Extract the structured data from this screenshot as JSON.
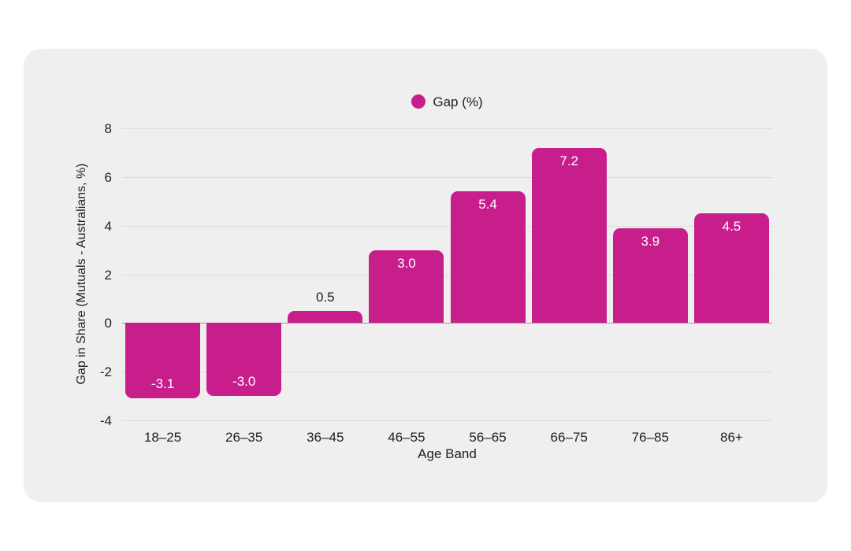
{
  "chart_data": {
    "type": "bar",
    "legend": {
      "label": "Gap (%)",
      "position": "top-center"
    },
    "categories": [
      "18–25",
      "26–35",
      "36–45",
      "46–55",
      "56–65",
      "66–75",
      "76–85",
      "86+"
    ],
    "series": [
      {
        "name": "Gap (%)",
        "values": [
          -3.1,
          -3.0,
          0.5,
          3.0,
          5.4,
          7.2,
          3.9,
          4.5
        ]
      }
    ],
    "value_labels": [
      "-3.1",
      "-3.0",
      "0.5",
      "3.0",
      "5.4",
      "7.2",
      "3.9",
      "4.5"
    ],
    "xlabel": "Age Band",
    "ylabel": "Gap in Share (Mutuals - Australians, %)",
    "ylim": [
      -4,
      8
    ],
    "yticks": [
      8,
      6,
      4,
      2,
      0,
      -2,
      -4
    ],
    "grid": true,
    "colors": {
      "bar": "#C71E8C",
      "card_background": "#EFEFEF",
      "page_background": "#FFFFFF",
      "gridline": "#DCDCDC",
      "zero_line": "#999999",
      "text": "#1F1F1F",
      "bar_label_inside": "#FFFFFF",
      "bar_label_outside": "#1F1F1F"
    }
  }
}
